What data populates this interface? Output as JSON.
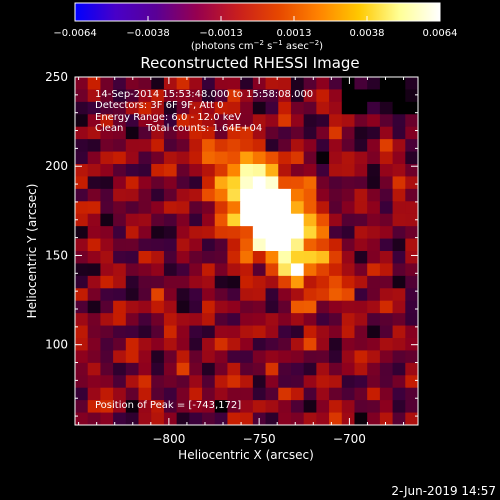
{
  "chart_data": {
    "type": "heatmap",
    "title": "Reconstructed RHESSI Image",
    "xlabel": "Heliocentric X (arcsec)",
    "ylabel": "Heliocentric Y (arcsec)",
    "xlim": [
      -852,
      -662
    ],
    "ylim": [
      55,
      250
    ],
    "xticks": [
      -800,
      -750,
      -700
    ],
    "yticks": [
      100,
      150,
      200,
      250
    ],
    "x_tick_labels": [
      "−800",
      "−750",
      "−700"
    ],
    "y_tick_labels": [
      "100",
      "150",
      "200",
      "250"
    ],
    "colorbar": {
      "range": [
        -0.0064,
        0.0064
      ],
      "tick_labels": [
        "−0.0064",
        "−0.0038",
        "−0.0013",
        "0.0013",
        "0.0038",
        "0.0064"
      ],
      "unit_prefix": "(photons cm",
      "unit_exp1": "−2",
      "unit_mid": " s",
      "unit_exp2": "−1",
      "unit_mid2": " asec",
      "unit_exp3": "−2",
      "unit_suffix": ")",
      "colors": [
        "#0000ff",
        "#4800c8",
        "#5a0096",
        "#960050",
        "#c81e1e",
        "#e64600",
        "#ff8200",
        "#ffc800",
        "#ffff96",
        "#ffffff"
      ]
    },
    "annotations": {
      "time_range": "14-Sep-2014 15:53:48.000 to 15:58:08.000",
      "detectors": "Detectors: 3F 6F 9F, Att 0",
      "energy": "Energy Range: 6.0 - 12.0 keV",
      "method": "Clean",
      "counts": "Total counts: 1.64E+04",
      "peak": "Position of Peak = [-743,172]"
    },
    "source": {
      "peak_x": -743,
      "peak_y": 172,
      "grid_cols": 27,
      "grid_rows": 28
    }
  },
  "footer": {
    "date": "2-Jun-2019 14:57"
  }
}
